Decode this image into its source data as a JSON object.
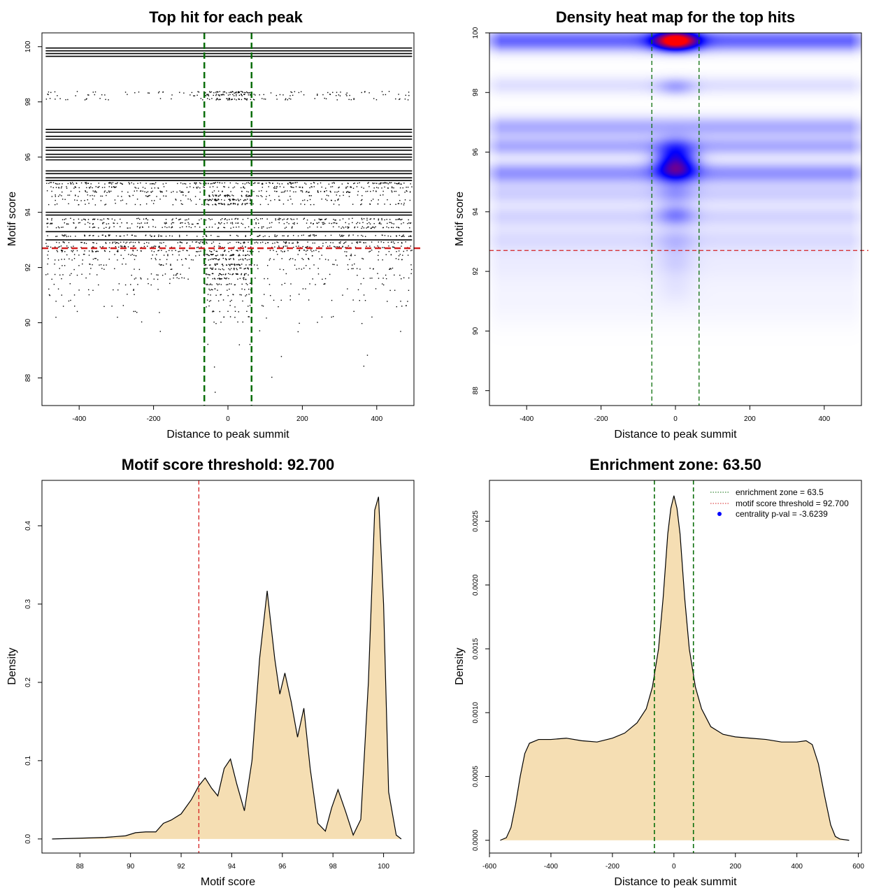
{
  "chart_data": [
    {
      "type": "scatter",
      "title": "Top hit for each peak",
      "xlabel": "Distance to peak summit",
      "ylabel": "Motif score",
      "xlim": [
        -500,
        500
      ],
      "ylim": [
        87,
        100.5
      ],
      "xticks": [
        -400,
        -200,
        0,
        200,
        400
      ],
      "yticks": [
        88,
        90,
        92,
        94,
        96,
        98,
        100
      ],
      "x_tick_labels": [
        "-400",
        "-200",
        "0",
        "200",
        "400"
      ],
      "y_tick_labels": [
        "88",
        "90",
        "92",
        "94",
        "96",
        "98",
        "100"
      ],
      "score_bands": [
        {
          "score": 99.95,
          "density": 1.0
        },
        {
          "score": 99.85,
          "density": 1.0
        },
        {
          "score": 99.75,
          "density": 1.0
        },
        {
          "score": 99.65,
          "density": 1.0
        },
        {
          "score": 98.35,
          "density": 0.35
        },
        {
          "score": 98.25,
          "density": 0.35
        },
        {
          "score": 98.1,
          "density": 0.35
        },
        {
          "score": 97.0,
          "density": 1.0
        },
        {
          "score": 96.9,
          "density": 1.0
        },
        {
          "score": 96.75,
          "density": 1.0
        },
        {
          "score": 96.65,
          "density": 1.0
        },
        {
          "score": 96.35,
          "density": 1.0
        },
        {
          "score": 96.25,
          "density": 1.0
        },
        {
          "score": 96.1,
          "density": 1.0
        },
        {
          "score": 96.0,
          "density": 1.0
        },
        {
          "score": 95.9,
          "density": 1.0
        },
        {
          "score": 95.5,
          "density": 1.0
        },
        {
          "score": 95.4,
          "density": 1.0
        },
        {
          "score": 95.25,
          "density": 1.0
        },
        {
          "score": 95.15,
          "density": 1.0
        },
        {
          "score": 95.05,
          "density": 0.8
        },
        {
          "score": 94.9,
          "density": 0.55
        },
        {
          "score": 94.75,
          "density": 0.55
        },
        {
          "score": 94.6,
          "density": 0.45
        },
        {
          "score": 94.45,
          "density": 0.45
        },
        {
          "score": 94.3,
          "density": 0.4
        },
        {
          "score": 94.0,
          "density": 1.0
        },
        {
          "score": 93.9,
          "density": 1.0
        },
        {
          "score": 93.75,
          "density": 0.6
        },
        {
          "score": 93.6,
          "density": 0.6
        },
        {
          "score": 93.45,
          "density": 0.5
        },
        {
          "score": 93.3,
          "density": 1.0
        },
        {
          "score": 93.15,
          "density": 0.6
        },
        {
          "score": 93.0,
          "density": 1.0
        },
        {
          "score": 92.9,
          "density": 0.6
        },
        {
          "score": 92.75,
          "density": 0.5
        },
        {
          "score": 92.6,
          "density": 0.5
        },
        {
          "score": 92.45,
          "density": 0.4
        },
        {
          "score": 92.3,
          "density": 0.4
        },
        {
          "score": 92.1,
          "density": 0.35
        },
        {
          "score": 91.95,
          "density": 0.3
        },
        {
          "score": 91.75,
          "density": 0.3
        },
        {
          "score": 91.6,
          "density": 0.25
        },
        {
          "score": 91.4,
          "density": 0.2
        },
        {
          "score": 91.2,
          "density": 0.15
        },
        {
          "score": 91.0,
          "density": 0.12
        },
        {
          "score": 90.8,
          "density": 0.1
        },
        {
          "score": 90.6,
          "density": 0.08
        },
        {
          "score": 90.4,
          "density": 0.07
        },
        {
          "score": 90.2,
          "density": 0.06
        },
        {
          "score": 90.0,
          "density": 0.04
        },
        {
          "score": 89.7,
          "density": 0.02
        },
        {
          "score": 89.2,
          "density": 0.015
        },
        {
          "score": 88.8,
          "density": 0.01
        },
        {
          "score": 88.4,
          "density": 0.008
        },
        {
          "score": 88.0,
          "density": 0.004
        },
        {
          "score": 87.5,
          "density": 0.002
        }
      ],
      "hlines": [
        {
          "y": 92.7,
          "color": "#d42020"
        }
      ],
      "vlines": [
        {
          "x": -63.5,
          "color": "#0a6e0a"
        },
        {
          "x": 63.5,
          "color": "#0a6e0a"
        }
      ]
    },
    {
      "type": "heatmap",
      "title": "Density heat map for the top hits",
      "xlabel": "Distance to peak summit",
      "ylabel": "Motif score",
      "xlim": [
        -500,
        500
      ],
      "ylim": [
        87.5,
        100
      ],
      "xticks": [
        -400,
        -200,
        0,
        200,
        400
      ],
      "yticks": [
        88,
        90,
        92,
        94,
        96,
        98,
        100
      ],
      "x_tick_labels": [
        "-400",
        "-200",
        "0",
        "200",
        "400"
      ],
      "y_tick_labels": [
        "88",
        "90",
        "92",
        "94",
        "96",
        "98",
        "100"
      ],
      "colors": [
        "#ffffff",
        "#0000ff",
        "#ff0000"
      ],
      "background_bands": [
        {
          "y": 99.75,
          "sigma": 0.25,
          "w": 0.6
        },
        {
          "y": 98.25,
          "sigma": 0.22,
          "w": 0.12
        },
        {
          "y": 96.85,
          "sigma": 0.25,
          "w": 0.32
        },
        {
          "y": 96.2,
          "sigma": 0.22,
          "w": 0.32
        },
        {
          "y": 95.3,
          "sigma": 0.25,
          "w": 0.42
        },
        {
          "y": 94.6,
          "sigma": 0.25,
          "w": 0.18
        },
        {
          "y": 93.85,
          "sigma": 0.25,
          "w": 0.16
        },
        {
          "y": 93.1,
          "sigma": 0.3,
          "w": 0.12
        },
        {
          "y": 92.3,
          "sigma": 0.5,
          "w": 0.07
        },
        {
          "y": 91.0,
          "sigma": 0.6,
          "w": 0.04
        }
      ],
      "hotspots": [
        {
          "x": 0,
          "y": 99.75,
          "sx": 40,
          "sy": 0.22,
          "w": 1.8
        },
        {
          "x": 0,
          "y": 95.5,
          "sx": 38,
          "sy": 0.35,
          "w": 0.95
        },
        {
          "x": 0,
          "y": 96.0,
          "sx": 35,
          "sy": 0.35,
          "w": 0.45
        },
        {
          "x": 0,
          "y": 98.2,
          "sx": 35,
          "sy": 0.2,
          "w": 0.25
        },
        {
          "x": 0,
          "y": 94.6,
          "sx": 35,
          "sy": 0.25,
          "w": 0.2
        },
        {
          "x": 0,
          "y": 93.9,
          "sx": 35,
          "sy": 0.25,
          "w": 0.35
        },
        {
          "x": 0,
          "y": 93.0,
          "sx": 35,
          "sy": 0.3,
          "w": 0.15
        },
        {
          "x": 0,
          "y": 92.3,
          "sx": 35,
          "sy": 0.3,
          "w": 0.1
        },
        {
          "x": 0,
          "y": 91.5,
          "sx": 35,
          "sy": 0.4,
          "w": 0.06
        }
      ],
      "hlines": [
        {
          "y": 92.7,
          "color": "#d42020"
        }
      ],
      "vlines": [
        {
          "x": -63.5,
          "color": "#0a6e0a"
        },
        {
          "x": 63.5,
          "color": "#0a6e0a"
        }
      ]
    },
    {
      "type": "area",
      "title": "Motif score threshold: 92.700",
      "xlabel": "Motif score",
      "ylabel": "Density",
      "xlim": [
        86.5,
        101.2
      ],
      "ylim": [
        -0.018,
        0.458
      ],
      "xticks": [
        88,
        90,
        92,
        94,
        96,
        98,
        100
      ],
      "yticks": [
        0.0,
        0.1,
        0.2,
        0.3,
        0.4
      ],
      "x_tick_labels": [
        "88",
        "90",
        "92",
        "94",
        "96",
        "98",
        "100"
      ],
      "y_tick_labels": [
        "0.0",
        "0.1",
        "0.2",
        "0.3",
        "0.4"
      ],
      "fill": "#f5deb3",
      "x": [
        86.9,
        88.0,
        89.0,
        89.8,
        90.2,
        90.6,
        91.0,
        91.3,
        91.6,
        92.0,
        92.4,
        92.7,
        92.95,
        93.2,
        93.45,
        93.7,
        93.95,
        94.2,
        94.5,
        94.8,
        95.1,
        95.4,
        95.7,
        95.9,
        96.1,
        96.35,
        96.6,
        96.85,
        97.1,
        97.4,
        97.7,
        97.95,
        98.2,
        98.5,
        98.8,
        99.1,
        99.4,
        99.65,
        99.8,
        100.0,
        100.2,
        100.5,
        100.7
      ],
      "y": [
        0.0,
        0.001,
        0.002,
        0.004,
        0.008,
        0.009,
        0.009,
        0.02,
        0.024,
        0.032,
        0.05,
        0.068,
        0.078,
        0.065,
        0.055,
        0.09,
        0.102,
        0.07,
        0.036,
        0.1,
        0.23,
        0.317,
        0.23,
        0.185,
        0.212,
        0.175,
        0.13,
        0.167,
        0.09,
        0.02,
        0.01,
        0.04,
        0.063,
        0.035,
        0.005,
        0.025,
        0.2,
        0.42,
        0.437,
        0.3,
        0.06,
        0.005,
        0.0
      ],
      "vlines": [
        {
          "x": 92.7,
          "color": "#d42020"
        }
      ]
    },
    {
      "type": "area",
      "title": "Enrichment zone: 63.50",
      "xlabel": "Distance to peak summit",
      "ylabel": "Density",
      "xlim": [
        -600,
        610
      ],
      "ylim": [
        -0.0001,
        0.00282
      ],
      "xticks": [
        -600,
        -400,
        -200,
        0,
        200,
        400,
        600
      ],
      "yticks": [
        0.0,
        0.0005,
        0.001,
        0.0015,
        0.002,
        0.0025
      ],
      "x_tick_labels": [
        "-600",
        "-400",
        "-200",
        "0",
        "200",
        "400",
        "600"
      ],
      "y_tick_labels": [
        "0.0000",
        "0.0005",
        "0.0010",
        "0.0015",
        "0.0020",
        "0.0025"
      ],
      "fill": "#f5deb3",
      "x": [
        -565,
        -545,
        -530,
        -515,
        -500,
        -485,
        -470,
        -440,
        -400,
        -350,
        -300,
        -250,
        -200,
        -160,
        -120,
        -90,
        -70,
        -50,
        -35,
        -20,
        -10,
        0,
        10,
        20,
        35,
        50,
        70,
        90,
        120,
        160,
        200,
        250,
        300,
        350,
        400,
        430,
        450,
        470,
        490,
        510,
        525,
        540,
        570
      ],
      "y": [
        0.0,
        2e-05,
        0.0001,
        0.00028,
        0.0005,
        0.00068,
        0.00076,
        0.00079,
        0.00079,
        0.0008,
        0.00078,
        0.00077,
        0.0008,
        0.00084,
        0.00092,
        0.00103,
        0.0012,
        0.0015,
        0.0019,
        0.0024,
        0.0026,
        0.0027,
        0.0026,
        0.0024,
        0.0019,
        0.0015,
        0.0012,
        0.00103,
        0.00089,
        0.00083,
        0.00081,
        0.0008,
        0.00079,
        0.00077,
        0.00077,
        0.00078,
        0.00075,
        0.0006,
        0.00035,
        0.00012,
        3e-05,
        1e-05,
        0.0
      ],
      "vlines": [
        {
          "x": -63.5,
          "color": "#0a6e0a"
        },
        {
          "x": 63.5,
          "color": "#0a6e0a"
        }
      ],
      "legend": {
        "position": "top-right",
        "items": [
          {
            "label": "enrichment zone = 63.5",
            "color": "#0a6e0a",
            "style": "dotted"
          },
          {
            "label": "motif score threshold = 92.700",
            "color": "#d42020",
            "style": "dotted"
          },
          {
            "label": "centrality p-val = -3.6239",
            "color": "#0000ff",
            "style": "point"
          }
        ]
      }
    }
  ]
}
